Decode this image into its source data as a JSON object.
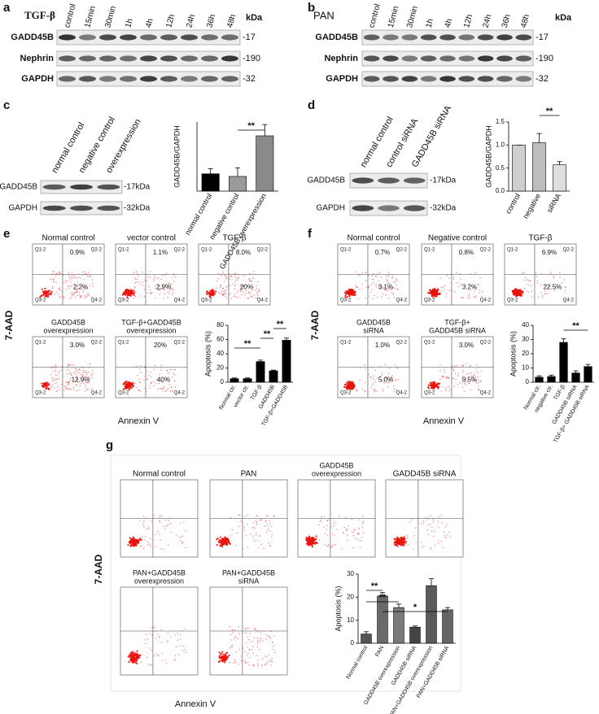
{
  "panels": {
    "a": {
      "letter": "a",
      "treatment": "TGF-β",
      "unit": "kDa",
      "lanes": [
        "control",
        "15min",
        "30min",
        "1h",
        "4h",
        "12h",
        "24h",
        "36h",
        "48h"
      ],
      "rows": [
        {
          "label": "GADD45B",
          "marker": "-17"
        },
        {
          "label": "Nephrin",
          "marker": "-190"
        },
        {
          "label": "GAPDH",
          "marker": "-32"
        }
      ]
    },
    "b": {
      "letter": "b",
      "treatment": "PAN",
      "unit": "kDa",
      "lanes": [
        "control",
        "15min",
        "30min",
        "1h",
        "4h",
        "12h",
        "24h",
        "36h",
        "48h"
      ],
      "rows": [
        {
          "label": "GADD45B",
          "marker": "-17"
        },
        {
          "label": "Nephrin",
          "marker": "-190"
        },
        {
          "label": "GAPDH",
          "marker": "-32"
        }
      ]
    },
    "c": {
      "letter": "c",
      "lanes": [
        "normal control",
        "negative control",
        "overexpression"
      ],
      "rows": [
        {
          "label": "GADD45B",
          "marker": "-17kDa"
        },
        {
          "label": "GAPDH",
          "marker": "-32kDa"
        }
      ]
    },
    "d": {
      "letter": "d",
      "lanes": [
        "normal control",
        "control siRNA",
        "GADD45B siRNA"
      ],
      "rows": [
        {
          "label": "GADD45B",
          "marker": "-17kDa"
        },
        {
          "label": "GAPDH",
          "marker": "-32kDa"
        }
      ]
    },
    "e": {
      "letter": "e",
      "y_label": "7-AAD",
      "x_label": "Annexin V",
      "quadrants": [
        "Q1-2",
        "Q2-2",
        "Q3-2",
        "Q4-2"
      ],
      "plots": [
        {
          "title": [
            "Normal control"
          ],
          "upper": "0.9%",
          "lower": "2.2%"
        },
        {
          "title": [
            "vector control"
          ],
          "upper": "1.1%",
          "lower": "2.9%"
        },
        {
          "title": [
            "TGF-β"
          ],
          "upper": "8.0%",
          "lower": "20%"
        },
        {
          "title": [
            "GADD45B",
            "overexpression"
          ],
          "upper": "3.0%",
          "lower": "12.9%"
        },
        {
          "title": [
            "TGF-β+GADD45B",
            "overexpression"
          ],
          "upper": "20%",
          "lower": "40%"
        }
      ]
    },
    "f": {
      "letter": "f",
      "y_label": "7-AAD",
      "x_label": "Annexin V",
      "quadrants": [
        "Q1-2",
        "Q2-2",
        "Q3-2",
        "Q4-2"
      ],
      "plots": [
        {
          "title": [
            "Normal control"
          ],
          "upper": "0.7%",
          "lower": "3.1%"
        },
        {
          "title": [
            "Negative control"
          ],
          "upper": "0.8%",
          "lower": "3.2%"
        },
        {
          "title": [
            "TGF-β"
          ],
          "upper": "6.9%",
          "lower": "22.5%"
        },
        {
          "title": [
            "GADD45B",
            "siRNA"
          ],
          "upper": "1.0%",
          "lower": "5.0%"
        },
        {
          "title": [
            "TGF-β+",
            "GADD45B siRNA"
          ],
          "upper": "3.0%",
          "lower": "9.5%"
        }
      ]
    },
    "g": {
      "letter": "g",
      "y_label": "7-AAD",
      "x_label": "Annexin V",
      "plots": [
        {
          "title": [
            "Normal control"
          ]
        },
        {
          "title": [
            "PAN"
          ]
        },
        {
          "title": [
            "GADD45B",
            "overexpression"
          ]
        },
        {
          "title": [
            "GADD45B siRNA"
          ]
        },
        {
          "title": [
            "PAN+GADD45B",
            "overexpression"
          ]
        },
        {
          "title": [
            "PAN+GADD45B",
            "siRNA"
          ]
        }
      ]
    }
  },
  "chart_data": [
    {
      "type": "bar",
      "y_label": "GADD45B/GAPDH",
      "categories": [
        "normal control",
        "negative control",
        "GADD45B overexpression"
      ],
      "values": [
        1.0,
        0.85,
        3.2
      ],
      "errors": [
        0.3,
        0.5,
        0.65
      ],
      "colors": [
        "#000000",
        "#9a9a9a",
        "#8a8a8a"
      ],
      "ylim": [
        0,
        4
      ],
      "annotations": [
        "**"
      ]
    },
    {
      "type": "bar",
      "y_label": "GADD45B/GAPDH",
      "categories": [
        "control",
        "negative",
        "siRNA"
      ],
      "values": [
        1.0,
        1.05,
        0.57
      ],
      "errors": [
        0,
        0.2,
        0.07
      ],
      "colors": [
        "#cfcfcf",
        "#bdbdbd",
        "#dedede"
      ],
      "ylim": [
        0,
        1.5
      ],
      "yticks": [
        {
          "value": 0,
          "label": "0.0"
        },
        {
          "value": 0.5,
          "label": "0.5"
        },
        {
          "value": 1,
          "label": "1.0"
        },
        {
          "value": 1.5,
          "label": "1.5"
        }
      ],
      "annotations": [
        "**"
      ]
    },
    {
      "type": "bar",
      "y_label": "Apoptosis (%)",
      "categories": [
        "Normal ctr.",
        "vector ctr.",
        "TGF-β",
        "GADD45B",
        "TGF-β+GADD45B"
      ],
      "values": [
        5,
        5,
        29,
        16,
        59
      ],
      "errors": [
        1,
        1,
        2,
        1,
        3
      ],
      "colors": [
        "#000000",
        "#000000",
        "#000000",
        "#000000",
        "#000000"
      ],
      "ylim": [
        0,
        80
      ],
      "yticks": [
        0,
        20,
        40,
        60,
        80
      ],
      "annotations": [
        "**",
        "**",
        "**"
      ]
    },
    {
      "type": "bar",
      "y_label": "Apoptosis (%)",
      "categories": [
        "Normal ctr.",
        "negative ctr.",
        "TGF-β",
        "GADD45B siRNA",
        "TGF-β+ GADD45B siRNA"
      ],
      "values": [
        3.5,
        4,
        28,
        6.5,
        11
      ],
      "errors": [
        1,
        1,
        2.5,
        1.5,
        1.5
      ],
      "colors": [
        "#000000",
        "#000000",
        "#000000",
        "#000000",
        "#000000"
      ],
      "ylim": [
        0,
        40
      ],
      "yticks": [
        0,
        10,
        20,
        30,
        40
      ],
      "annotations": [
        "**"
      ]
    },
    {
      "type": "bar",
      "y_label": "Apoptosis (%)",
      "categories": [
        "Normal control",
        "PAN",
        "GADD45B overexpression",
        "GADD45B siRNA",
        "PAN+GADD45B overexpression",
        "PAN+GADD45B siRNA"
      ],
      "values": [
        4,
        20.5,
        15.5,
        7,
        25,
        14.5
      ],
      "errors": [
        1,
        1.5,
        1.5,
        0.5,
        3,
        1
      ],
      "colors": [
        "#555555",
        "#6a6a6a",
        "#7a7a7a",
        "#444444",
        "#5a5a5a",
        "#666666"
      ],
      "ylim": [
        0,
        30
      ],
      "yticks": [
        0,
        10,
        20,
        30
      ],
      "annotations": [
        "**",
        "**",
        "*"
      ]
    }
  ]
}
